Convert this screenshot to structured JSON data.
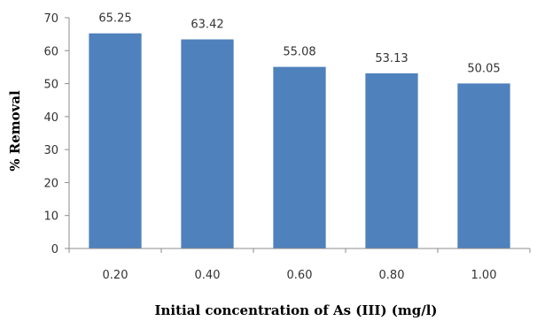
{
  "chart_data": {
    "type": "bar",
    "categories": [
      "0.20",
      "0.40",
      "0.60",
      "0.80",
      "1.00"
    ],
    "values": [
      65.25,
      63.42,
      55.08,
      53.13,
      50.05
    ],
    "data_labels": [
      "65.25",
      "63.42",
      "55.08",
      "53.13",
      "50.05"
    ],
    "title": "",
    "xlabel": "Initial concentration of As (III) (mg/l)",
    "ylabel": "% Removal",
    "ylim": [
      0,
      70
    ],
    "yticks": [
      "0",
      "10",
      "20",
      "30",
      "40",
      "50",
      "60",
      "70"
    ],
    "grid": false,
    "legend": "none",
    "bar_color": "#4f81bd",
    "axis_color": "#8c8c8c"
  }
}
